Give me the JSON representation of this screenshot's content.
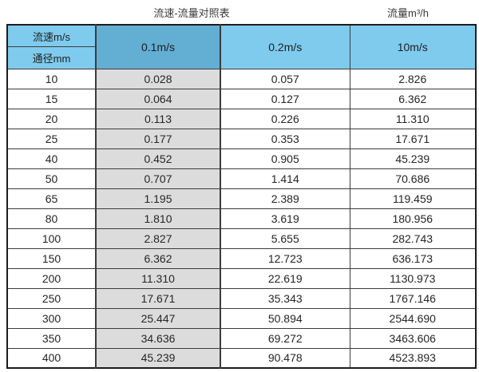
{
  "titles": {
    "main": "流速-流量对照表",
    "unit": "流量m³/h"
  },
  "table": {
    "header": {
      "top_left": "流速m/s",
      "bottom_left": "通径mm",
      "speeds": [
        "0.1m/s",
        "0.2m/s",
        "10m/s"
      ]
    },
    "rows": [
      {
        "dn": "10",
        "v1": "0.028",
        "v2": "0.057",
        "v3": "2.826"
      },
      {
        "dn": "15",
        "v1": "0.064",
        "v2": "0.127",
        "v3": "6.362"
      },
      {
        "dn": "20",
        "v1": "0.113",
        "v2": "0.226",
        "v3": "11.310"
      },
      {
        "dn": "25",
        "v1": "0.177",
        "v2": "0.353",
        "v3": "17.671"
      },
      {
        "dn": "40",
        "v1": "0.452",
        "v2": "0.905",
        "v3": "45.239"
      },
      {
        "dn": "50",
        "v1": "0.707",
        "v2": "1.414",
        "v3": "70.686"
      },
      {
        "dn": "65",
        "v1": "1.195",
        "v2": "2.389",
        "v3": "119.459"
      },
      {
        "dn": "80",
        "v1": "1.810",
        "v2": "3.619",
        "v3": "180.956"
      },
      {
        "dn": "100",
        "v1": "2.827",
        "v2": "5.655",
        "v3": "282.743"
      },
      {
        "dn": "150",
        "v1": "6.362",
        "v2": "12.723",
        "v3": "636.173"
      },
      {
        "dn": "200",
        "v1": "11.310",
        "v2": "22.619",
        "v3": "1130.973"
      },
      {
        "dn": "250",
        "v1": "17.671",
        "v2": "35.343",
        "v3": "1767.146"
      },
      {
        "dn": "300",
        "v1": "25.447",
        "v2": "50.894",
        "v3": "2544.690"
      },
      {
        "dn": "350",
        "v1": "34.636",
        "v2": "69.272",
        "v3": "3463.606"
      },
      {
        "dn": "400",
        "v1": "45.239",
        "v2": "90.478",
        "v3": "4523.893"
      }
    ]
  },
  "colors": {
    "header_blue": "#7ECBEE",
    "header_dark_blue": "#63AED3",
    "gray_column": "#DCDCDC",
    "border": "#3C3C3C",
    "text": "#2B2B2B"
  },
  "chart_data": {
    "type": "table",
    "title": "流速-流量对照表",
    "unit_label": "流量m³/h",
    "columns": [
      "通径mm",
      "0.1m/s",
      "0.2m/s",
      "10m/s"
    ],
    "rows": [
      [
        10,
        0.028,
        0.057,
        2.826
      ],
      [
        15,
        0.064,
        0.127,
        6.362
      ],
      [
        20,
        0.113,
        0.226,
        11.31
      ],
      [
        25,
        0.177,
        0.353,
        17.671
      ],
      [
        40,
        0.452,
        0.905,
        45.239
      ],
      [
        50,
        0.707,
        1.414,
        70.686
      ],
      [
        65,
        1.195,
        2.389,
        119.459
      ],
      [
        80,
        1.81,
        3.619,
        180.956
      ],
      [
        100,
        2.827,
        5.655,
        282.743
      ],
      [
        150,
        6.362,
        12.723,
        636.173
      ],
      [
        200,
        11.31,
        22.619,
        1130.973
      ],
      [
        250,
        17.671,
        35.343,
        1767.146
      ],
      [
        300,
        25.447,
        50.894,
        2544.69
      ],
      [
        350,
        34.636,
        69.272,
        3463.606
      ],
      [
        400,
        45.239,
        90.478,
        4523.893
      ]
    ]
  }
}
